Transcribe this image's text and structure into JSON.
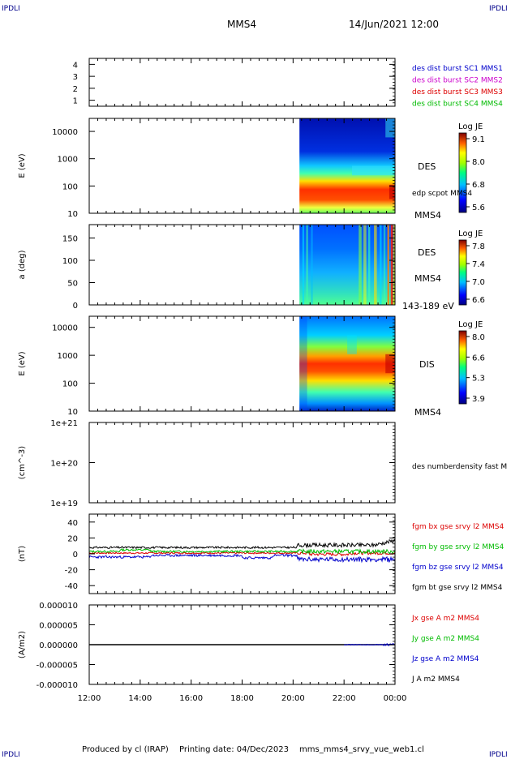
{
  "header": {
    "corner_label": "IPDLI",
    "spacecraft": "MMS4",
    "date_time": "14/Jun/2021 12:00"
  },
  "footer": {
    "produced_by": "Produced by cl (IRAP)",
    "printing_date": "Printing date: 04/Dec/2023",
    "file": "mms_mms4_srvy_vue_web1.cl"
  },
  "colors": {
    "blue": "#0000cc",
    "magenta": "#cc00cc",
    "red": "#dd0000",
    "green": "#00bb00",
    "black": "#000000"
  },
  "chart_data": [
    {
      "type": "line",
      "id": "burst",
      "ylim": [
        0.5,
        4.5
      ],
      "yticks": [
        "1",
        "2",
        "3",
        "4"
      ],
      "legend": [
        {
          "text": "des dist burst SC1 MMS1",
          "color": "#0000cc"
        },
        {
          "text": "des dist burst SC2 MMS2",
          "color": "#cc00cc"
        },
        {
          "text": "des dist burst SC3 MMS3",
          "color": "#dd0000"
        },
        {
          "text": "des dist burst SC4 MMS4",
          "color": "#00bb00"
        }
      ]
    },
    {
      "type": "heatmap",
      "id": "des-energy",
      "ylabel": "E (eV)",
      "yscale": "log",
      "ylim": [
        10,
        30000
      ],
      "yticks": [
        "10000",
        "1000",
        "100",
        "10"
      ],
      "labels": [
        "DES",
        "edp scpot MMS4",
        "MMS4"
      ],
      "data_start": "20:15",
      "colorbar": {
        "title": "Log JE",
        "ticks": [
          "9.1",
          "8.0",
          "6.8",
          "5.6"
        ]
      }
    },
    {
      "type": "heatmap",
      "id": "des-pitch",
      "ylabel": "a (deg)",
      "ylim": [
        0,
        180
      ],
      "yticks": [
        "150",
        "100",
        "50",
        "0"
      ],
      "labels": [
        "DES",
        "MMS4",
        "143-189 eV"
      ],
      "data_start": "20:15",
      "colorbar": {
        "title": "Log JE",
        "ticks": [
          "7.8",
          "7.4",
          "7.0",
          "6.6"
        ]
      }
    },
    {
      "type": "heatmap",
      "id": "dis-energy",
      "ylabel": "E (eV)",
      "yscale": "log",
      "ylim": [
        10,
        25000
      ],
      "yticks": [
        "10000",
        "1000",
        "100",
        "10"
      ],
      "labels": [
        "DIS",
        "MMS4"
      ],
      "data_start": "20:15",
      "colorbar": {
        "title": "Log JE",
        "ticks": [
          "8.0",
          "6.6",
          "5.3",
          "3.9"
        ]
      }
    },
    {
      "type": "line",
      "id": "density",
      "ylabel": "(cm^-3)",
      "yscale": "log",
      "yticks": [
        "1e+21",
        "1e+20",
        "1e+19"
      ],
      "legend": [
        {
          "text": "des numberdensity fast M",
          "color": "#000000"
        }
      ]
    },
    {
      "type": "line",
      "id": "fgm",
      "ylabel": "(nT)",
      "ylim": [
        -50,
        50
      ],
      "yticks": [
        "40",
        "20",
        "0",
        "-20",
        "-40"
      ],
      "legend": [
        {
          "text": "fgm bx gse srvy l2 MMS4",
          "color": "#dd0000"
        },
        {
          "text": "fgm by gse srvy l2 MMS4",
          "color": "#00bb00"
        },
        {
          "text": "fgm bz gse srvy l2 MMS4",
          "color": "#0000cc"
        },
        {
          "text": "fgm bt gse srvy l2 MMS4",
          "color": "#000000"
        }
      ]
    },
    {
      "type": "line",
      "id": "current",
      "ylabel": "(A/m2)",
      "ylim": [
        -1e-05,
        1e-05
      ],
      "yticks": [
        "0.000010",
        "0.000005",
        "0.000000",
        "-0.000005",
        "-0.000010"
      ],
      "legend": [
        {
          "text": "Jx gse A m2 MMS4",
          "color": "#dd0000"
        },
        {
          "text": "Jy gse A m2 MMS4",
          "color": "#00bb00"
        },
        {
          "text": "Jz gse A m2 MMS4",
          "color": "#0000cc"
        },
        {
          "text": "J A m2 MMS4",
          "color": "#000000"
        }
      ]
    }
  ],
  "time_axis": {
    "xlim": [
      "12:00",
      "00:00"
    ],
    "ticks": [
      "12:00",
      "14:00",
      "16:00",
      "18:00",
      "20:00",
      "22:00",
      "00:00"
    ]
  }
}
